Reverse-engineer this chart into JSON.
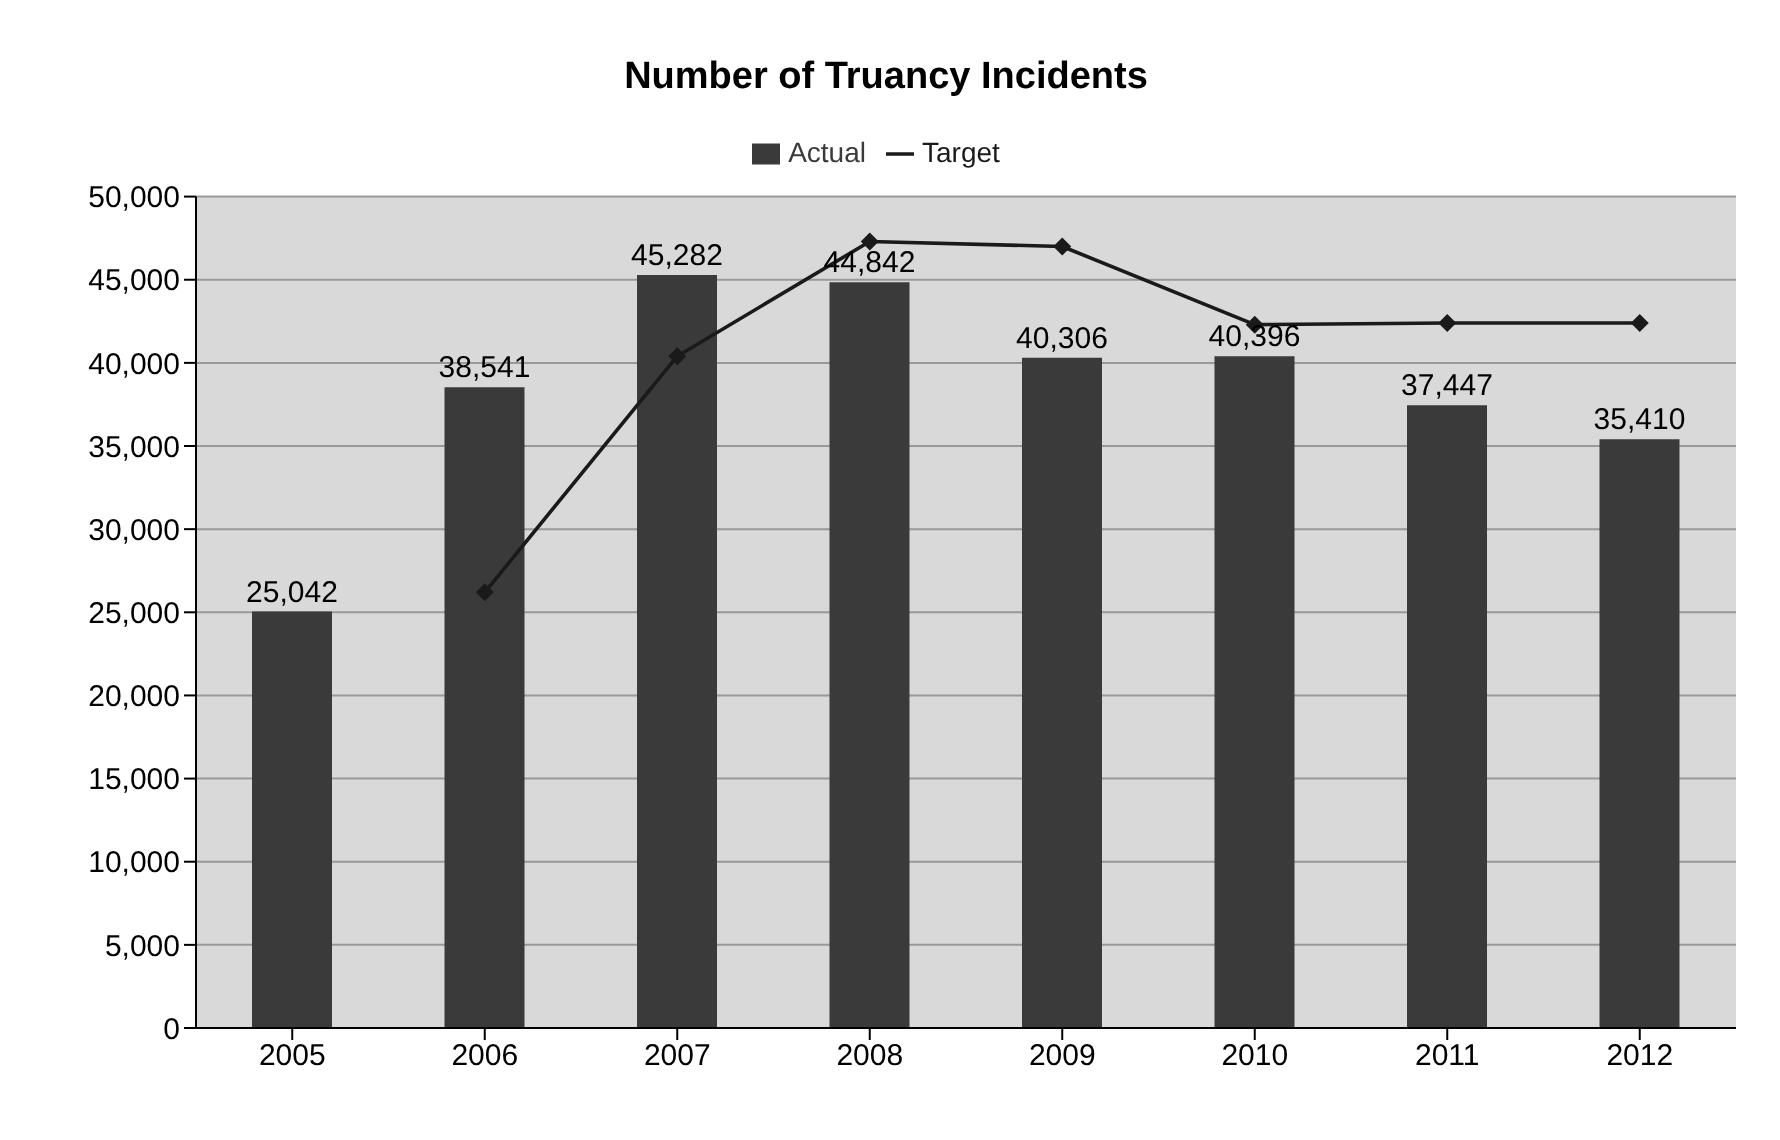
{
  "chart_data": {
    "type": "bar",
    "title": "Number of Truancy Incidents",
    "categories": [
      "2005",
      "2006",
      "2007",
      "2008",
      "2009",
      "2010",
      "2011",
      "2012"
    ],
    "series": [
      {
        "name": "Actual",
        "color": "#3a3a3a",
        "values": [
          25042,
          38541,
          45282,
          44842,
          40306,
          40396,
          37447,
          35410
        ],
        "value_labels": [
          "25,042",
          "38,541",
          "45,282",
          "44,842",
          "40,306",
          "40,396",
          "37,447",
          "35,410"
        ]
      },
      {
        "name": "Target",
        "type": "line",
        "color": "#1a1a1a",
        "marker": "diamond",
        "values": [
          null,
          26200,
          40400,
          47300,
          47000,
          42300,
          42400,
          42400
        ]
      }
    ],
    "ylim": [
      0,
      50000
    ],
    "yticks": [
      0,
      {
        "value": 5000,
        "label": "5,000"
      },
      {
        "value": 10000,
        "label": "10,000"
      },
      {
        "value": 15000,
        "label": "15,000"
      },
      {
        "value": 20000,
        "label": "20,000"
      },
      {
        "value": 25000,
        "label": "25,000"
      },
      {
        "value": 30000,
        "label": "30,000"
      },
      {
        "value": 35000,
        "label": "35,000"
      },
      {
        "value": 40000,
        "label": "40,000"
      },
      {
        "value": 45000,
        "label": "45,000"
      },
      {
        "value": 50000,
        "label": "50,000"
      }
    ],
    "grid": "y",
    "legend": "top"
  }
}
